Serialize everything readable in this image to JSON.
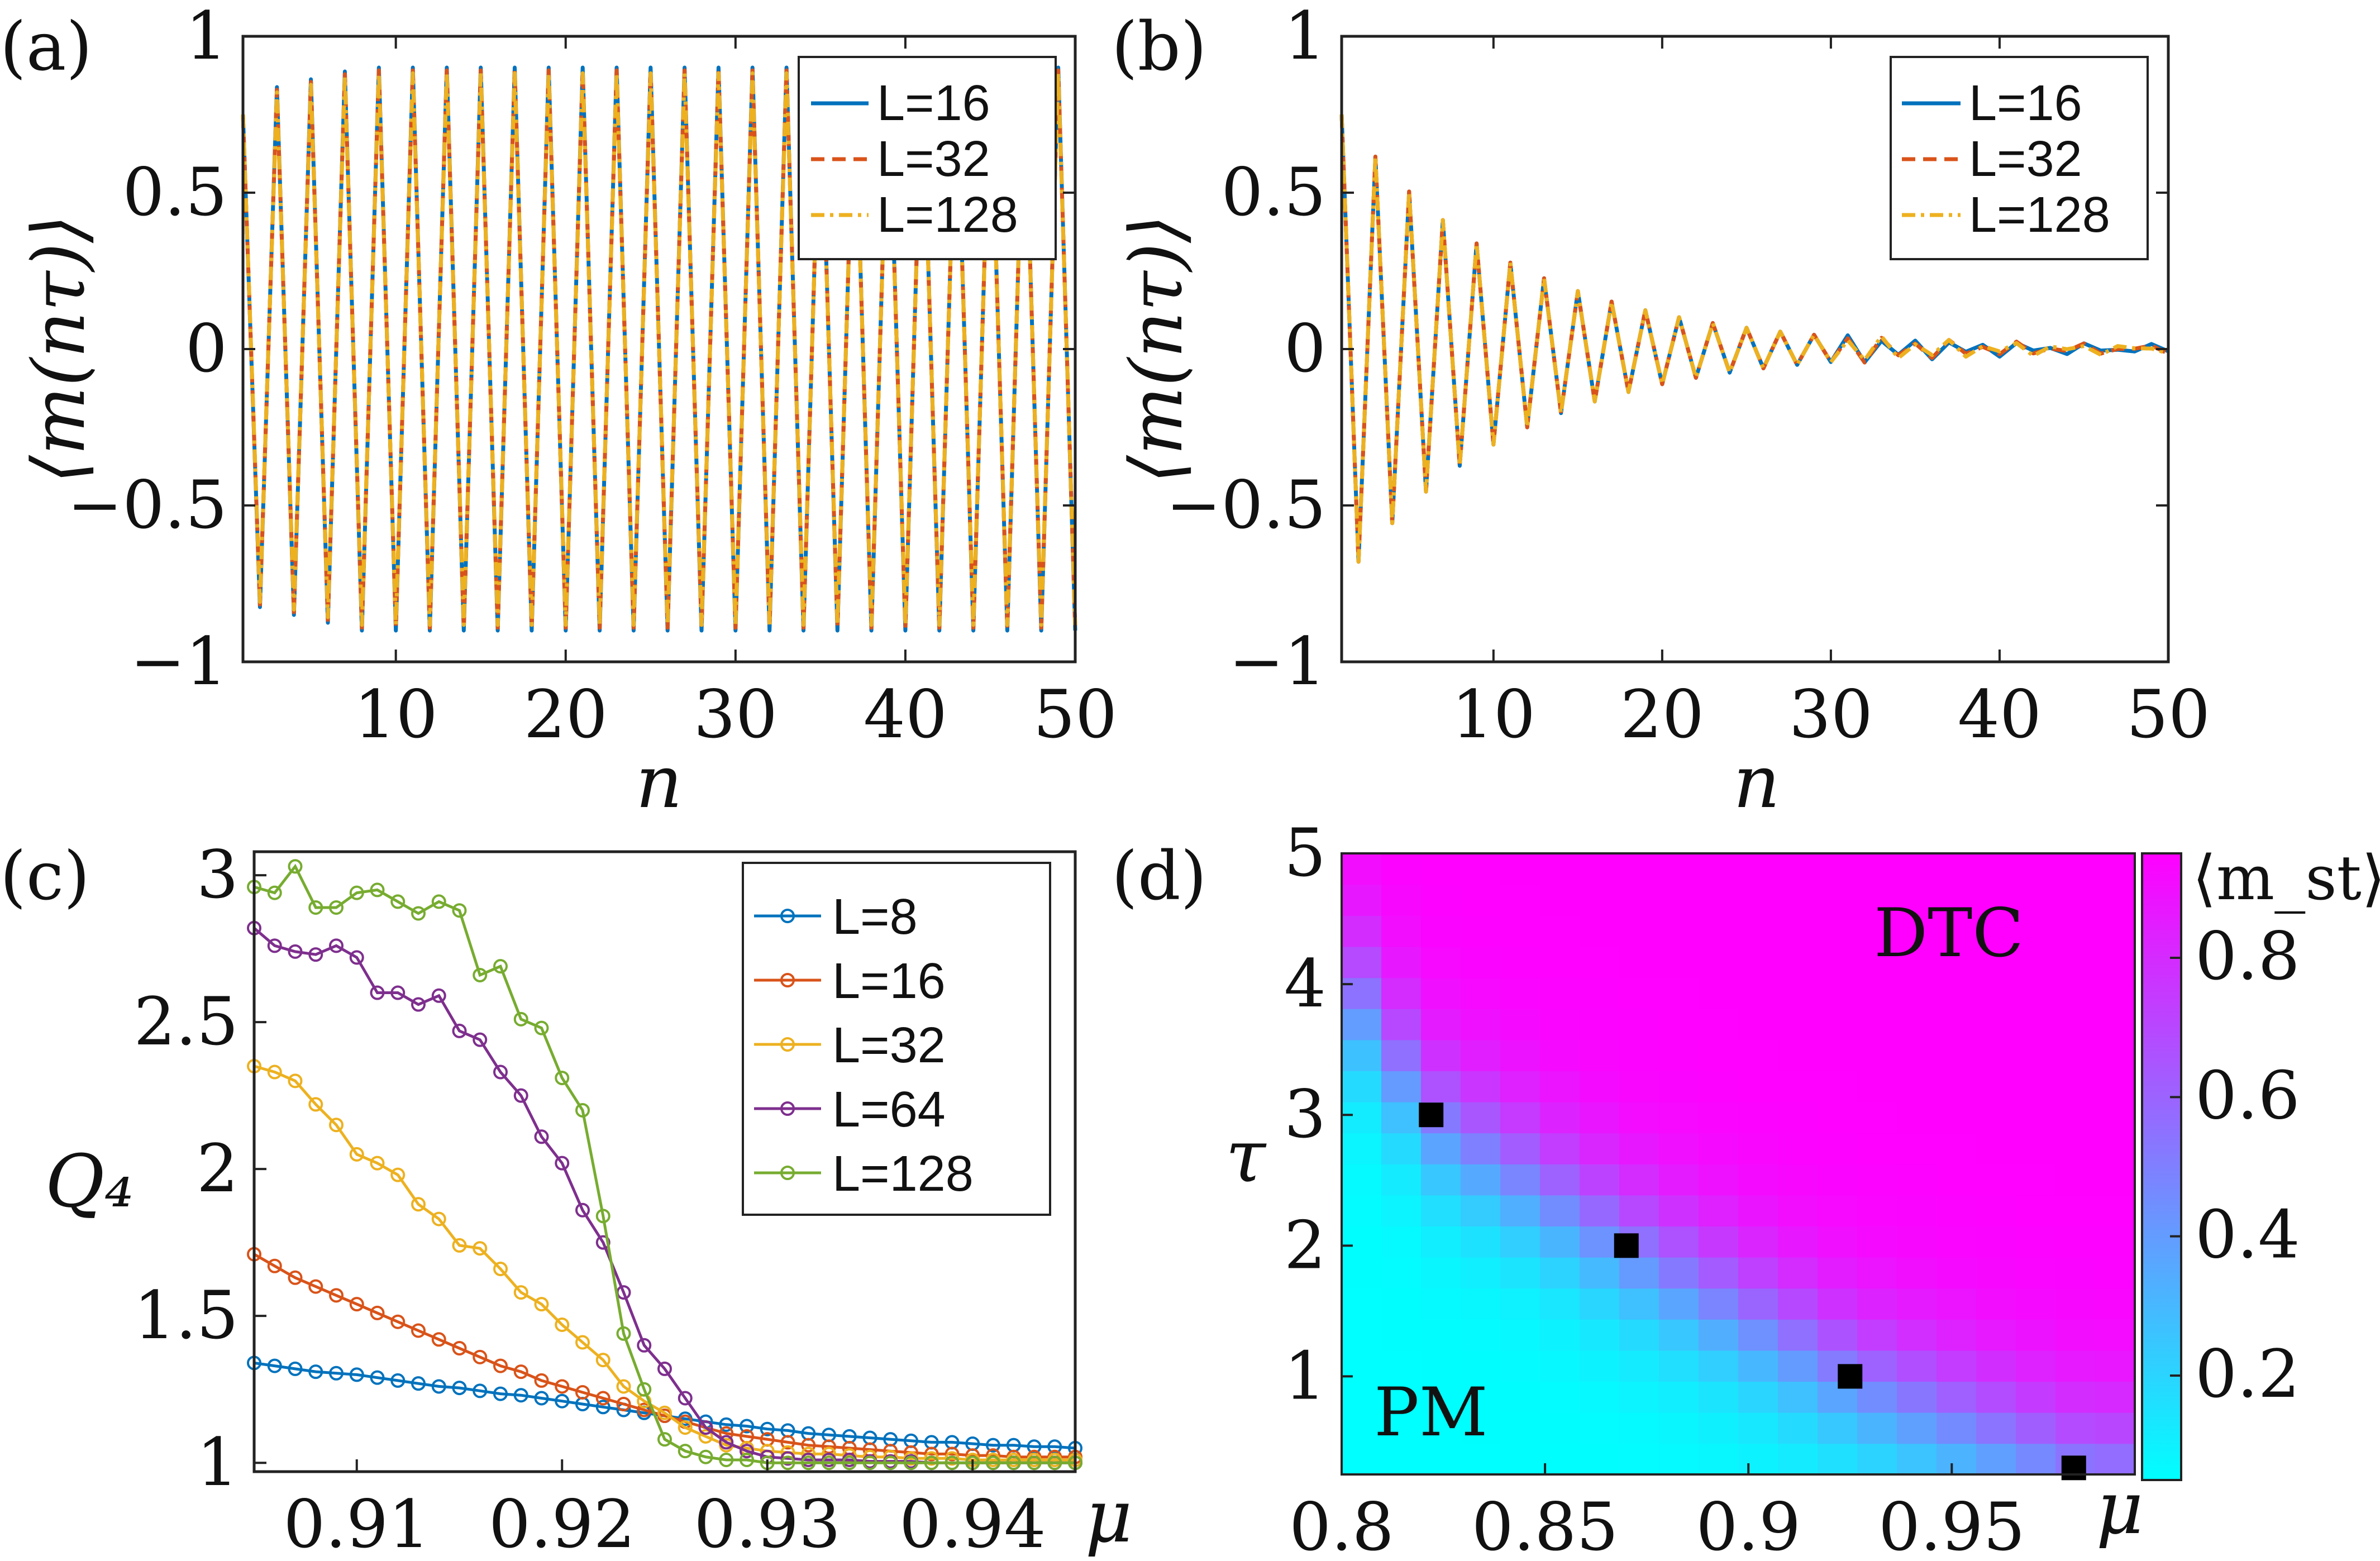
{
  "chart_data": [
    {
      "panel": "(a)",
      "type": "line",
      "title": "",
      "xlabel": "n",
      "ylabel": "⟨m(nτ)⟩",
      "xlim": [
        1,
        50
      ],
      "ylim": [
        -1,
        1
      ],
      "xticks": [
        "10",
        "20",
        "30",
        "40",
        "50"
      ],
      "xtick_values": [
        10,
        20,
        30,
        40,
        50
      ],
      "yticks": [
        "1",
        "0.5",
        "0",
        "−0.5",
        "−1"
      ],
      "ytick_values": [
        1,
        0.5,
        0,
        -0.5,
        -1
      ],
      "legend_position": "top-right",
      "signal": {
        "kind": "oscillation",
        "start": 0.75,
        "amplitude_early": 0.8,
        "amplitude_late": 0.9,
        "decay_rate": 0
      },
      "series": [
        {
          "name": "L=16",
          "color": "#0072BD",
          "dash": "solid"
        },
        {
          "name": "L=32",
          "color": "#D95319",
          "dash": "dash"
        },
        {
          "name": "L=128",
          "color": "#EDB120",
          "dash": "dashdot"
        }
      ]
    },
    {
      "panel": "(b)",
      "type": "line",
      "title": "",
      "xlabel": "n",
      "ylabel": "⟨m(nτ)⟩",
      "xlim": [
        1,
        50
      ],
      "ylim": [
        -1,
        1
      ],
      "xticks": [
        "10",
        "20",
        "30",
        "40",
        "50"
      ],
      "xtick_values": [
        10,
        20,
        30,
        40,
        50
      ],
      "yticks": [
        "1",
        "0.5",
        "0",
        "−0.5",
        "−1"
      ],
      "ytick_values": [
        1,
        0.5,
        0,
        -0.5,
        -1
      ],
      "legend_position": "top-right",
      "signal": {
        "kind": "damped-oscillation",
        "start": 0.75,
        "amplitude_early": 0.68,
        "decay_rate": 0.1,
        "noise": 0.01
      },
      "series": [
        {
          "name": "L=16",
          "color": "#0072BD",
          "dash": "solid"
        },
        {
          "name": "L=32",
          "color": "#D95319",
          "dash": "dash"
        },
        {
          "name": "L=128",
          "color": "#EDB120",
          "dash": "dashdot"
        }
      ]
    },
    {
      "panel": "(c)",
      "type": "line",
      "title": "",
      "xlabel": "μ",
      "ylabel": "Q₄",
      "xlim": [
        0.905,
        0.945
      ],
      "ylim": [
        0.97,
        3.08
      ],
      "xticks": [
        "0.91",
        "0.92",
        "0.93",
        "0.94"
      ],
      "xtick_values": [
        0.91,
        0.92,
        0.93,
        0.94
      ],
      "yticks": [
        "3",
        "2.5",
        "2",
        "1.5",
        "1"
      ],
      "ytick_values": [
        3,
        2.5,
        2,
        1.5,
        1
      ],
      "legend_position": "top-right",
      "x": [
        0.905,
        0.906,
        0.907,
        0.908,
        0.909,
        0.91,
        0.911,
        0.912,
        0.913,
        0.914,
        0.915,
        0.916,
        0.917,
        0.918,
        0.919,
        0.92,
        0.921,
        0.922,
        0.923,
        0.924,
        0.925,
        0.926,
        0.927,
        0.928,
        0.929,
        0.93,
        0.931,
        0.932,
        0.933,
        0.934,
        0.935,
        0.936,
        0.937,
        0.938,
        0.939,
        0.94,
        0.941,
        0.942,
        0.943,
        0.944,
        0.945
      ],
      "series": [
        {
          "name": "L=8",
          "color": "#0072BD",
          "values": [
            1.34,
            1.33,
            1.32,
            1.31,
            1.305,
            1.3,
            1.29,
            1.28,
            1.27,
            1.26,
            1.255,
            1.245,
            1.235,
            1.23,
            1.22,
            1.21,
            1.2,
            1.19,
            1.18,
            1.17,
            1.16,
            1.15,
            1.14,
            1.13,
            1.125,
            1.115,
            1.11,
            1.1,
            1.095,
            1.09,
            1.085,
            1.08,
            1.075,
            1.07,
            1.07,
            1.065,
            1.06,
            1.06,
            1.055,
            1.055,
            1.05
          ]
        },
        {
          "name": "L=16",
          "color": "#D95319",
          "values": [
            1.71,
            1.67,
            1.63,
            1.6,
            1.57,
            1.54,
            1.51,
            1.48,
            1.45,
            1.42,
            1.39,
            1.36,
            1.33,
            1.31,
            1.28,
            1.26,
            1.24,
            1.22,
            1.2,
            1.18,
            1.16,
            1.14,
            1.12,
            1.1,
            1.09,
            1.08,
            1.07,
            1.06,
            1.055,
            1.05,
            1.045,
            1.04,
            1.035,
            1.03,
            1.03,
            1.025,
            1.025,
            1.02,
            1.02,
            1.02,
            1.02
          ]
        },
        {
          "name": "L=32",
          "color": "#EDB120",
          "values": [
            2.35,
            2.33,
            2.3,
            2.22,
            2.15,
            2.05,
            2.02,
            1.98,
            1.88,
            1.83,
            1.74,
            1.73,
            1.66,
            1.58,
            1.54,
            1.47,
            1.41,
            1.35,
            1.26,
            1.21,
            1.17,
            1.12,
            1.09,
            1.06,
            1.05,
            1.04,
            1.035,
            1.03,
            1.03,
            1.025,
            1.02,
            1.02,
            1.015,
            1.015,
            1.015,
            1.01,
            1.01,
            1.01,
            1.01,
            1.01,
            1.01
          ]
        },
        {
          "name": "L=64",
          "color": "#7E2F8E",
          "values": [
            2.82,
            2.76,
            2.74,
            2.73,
            2.76,
            2.72,
            2.6,
            2.6,
            2.56,
            2.59,
            2.47,
            2.44,
            2.33,
            2.25,
            2.11,
            2.02,
            1.86,
            1.75,
            1.58,
            1.4,
            1.32,
            1.22,
            1.12,
            1.07,
            1.04,
            1.02,
            1.015,
            1.01,
            1.01,
            1.01,
            1.005,
            1.005,
            1.005,
            1.0,
            1.0,
            1.0,
            1.0,
            1.0,
            1.0,
            1.0,
            1.0
          ]
        },
        {
          "name": "L=128",
          "color": "#77AC30",
          "values": [
            2.96,
            2.94,
            3.03,
            2.89,
            2.89,
            2.94,
            2.95,
            2.91,
            2.87,
            2.91,
            2.88,
            2.66,
            2.69,
            2.51,
            2.48,
            2.31,
            2.2,
            1.84,
            1.44,
            1.25,
            1.08,
            1.04,
            1.02,
            1.01,
            1.01,
            1.0,
            1.0,
            1.0,
            1.0,
            1.0,
            1.0,
            1.0,
            1.0,
            1.0,
            1.0,
            1.0,
            1.0,
            1.0,
            1.0,
            1.0,
            1.0
          ]
        }
      ]
    },
    {
      "panel": "(d)",
      "type": "heatmap",
      "title": "",
      "xlabel": "μ",
      "ylabel": "τ",
      "xlim": [
        0.8,
        0.995
      ],
      "ylim": [
        0.25,
        5
      ],
      "xticks": [
        "0.8",
        "0.85",
        "0.9",
        "0.95"
      ],
      "xtick_values": [
        0.8,
        0.85,
        0.9,
        0.95
      ],
      "yticks": [
        "5",
        "4",
        "3",
        "2",
        "1"
      ],
      "ytick_values": [
        5,
        4,
        3,
        2,
        1
      ],
      "grid_cells": {
        "nx": 20,
        "ny": 20
      },
      "boundary_tau_of_mu": {
        "mu": [
          0.8,
          0.822,
          0.87,
          0.925,
          0.98,
          0.995
        ],
        "tau": [
          4.1,
          3.0,
          2.0,
          1.0,
          0.3,
          0.25
        ]
      },
      "colormap": {
        "low": "#00FFFF",
        "high": "#FF00FF",
        "vmin": 0.05,
        "vmax": 0.95
      },
      "colorbar": {
        "label": "⟨m_st⟩",
        "ticks": [
          "0.8",
          "0.6",
          "0.4",
          "0.2"
        ],
        "tick_values": [
          0.8,
          0.6,
          0.4,
          0.2
        ]
      },
      "markers": {
        "mu": [
          0.822,
          0.87,
          0.925,
          0.98
        ],
        "tau": [
          3.0,
          2.0,
          1.0,
          0.3
        ]
      },
      "annotations": [
        "DTC",
        "PM"
      ]
    }
  ]
}
